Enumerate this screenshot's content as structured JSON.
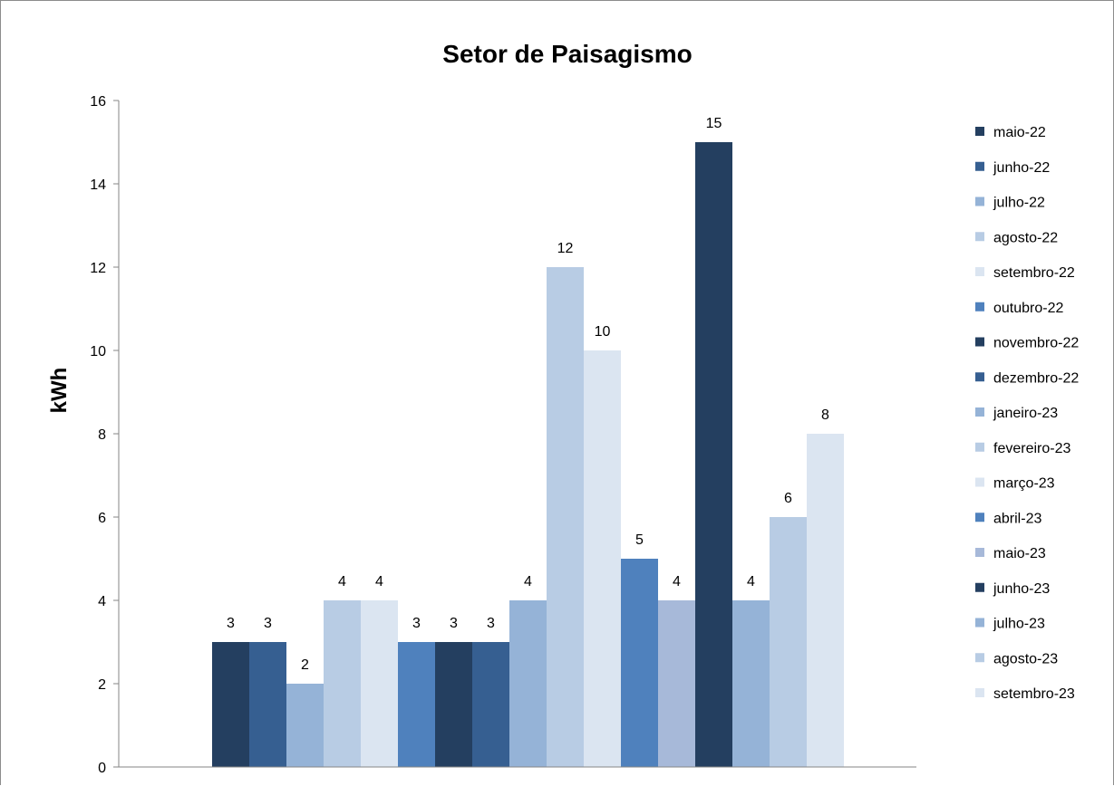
{
  "colors": {
    "background": "#ffffff",
    "axis": "#868686",
    "frame": "#8c8c8c",
    "text": "#000000"
  },
  "chart_data": {
    "type": "bar",
    "title": "Setor de Paisagismo",
    "xlabel": "",
    "ylabel": "kWh",
    "ylim": [
      0,
      16
    ],
    "yticks": [
      0,
      2,
      4,
      6,
      8,
      10,
      12,
      14,
      16
    ],
    "grid": false,
    "legend_position": "right",
    "categories": [
      ""
    ],
    "series": [
      {
        "name": "maio-22",
        "values": [
          3
        ],
        "color": "#243f60"
      },
      {
        "name": "junho-22",
        "values": [
          3
        ],
        "color": "#365f91"
      },
      {
        "name": "julho-22",
        "values": [
          2
        ],
        "color": "#95b3d7"
      },
      {
        "name": "agosto-22",
        "values": [
          4
        ],
        "color": "#b8cce4"
      },
      {
        "name": "setembro-22",
        "values": [
          4
        ],
        "color": "#dbe5f1"
      },
      {
        "name": "outubro-22",
        "values": [
          3
        ],
        "color": "#4f81bd"
      },
      {
        "name": "novembro-22",
        "values": [
          3
        ],
        "color": "#243f60"
      },
      {
        "name": "dezembro-22",
        "values": [
          3
        ],
        "color": "#365f91"
      },
      {
        "name": "janeiro-23",
        "values": [
          4
        ],
        "color": "#95b3d7"
      },
      {
        "name": "fevereiro-23",
        "values": [
          12
        ],
        "color": "#b8cce4"
      },
      {
        "name": "março-23",
        "values": [
          10
        ],
        "color": "#dbe5f1"
      },
      {
        "name": "abril-23",
        "values": [
          5
        ],
        "color": "#4f81bd"
      },
      {
        "name": "maio-23",
        "values": [
          4
        ],
        "color": "#a7b9d9"
      },
      {
        "name": "junho-23",
        "values": [
          15
        ],
        "color": "#243f60"
      },
      {
        "name": "julho-23",
        "values": [
          4
        ],
        "color": "#95b3d7"
      },
      {
        "name": "agosto-23",
        "values": [
          6
        ],
        "color": "#b8cce4"
      },
      {
        "name": "setembro-23",
        "values": [
          8
        ],
        "color": "#dbe5f1"
      }
    ]
  }
}
